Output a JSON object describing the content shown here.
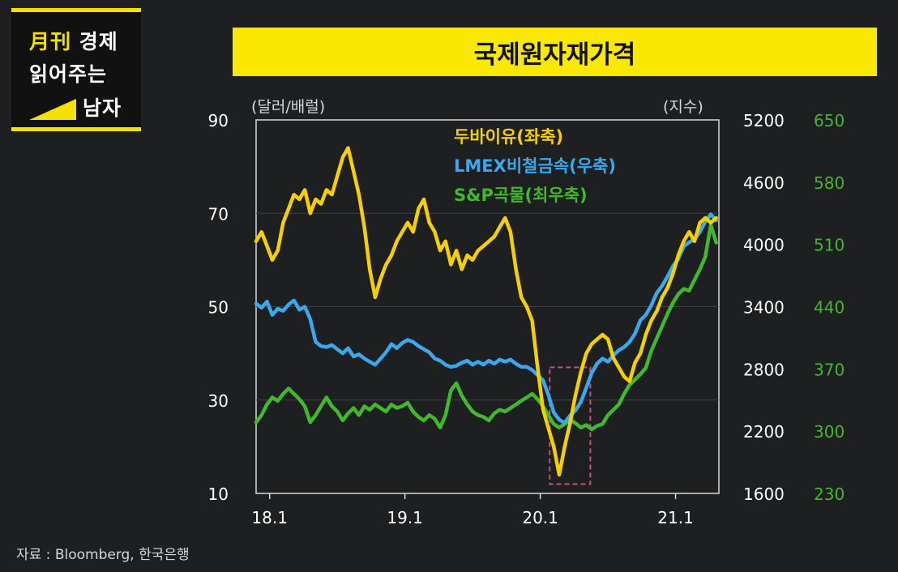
{
  "logo": {
    "line1_accent": "月刊",
    "line1": "경제",
    "line2": "읽어주는",
    "line3": "남자"
  },
  "title": "국제원자재가격",
  "source": "자료 : Bloomberg, 한국은행",
  "chart_data": {
    "type": "line",
    "title": "국제원자재가격",
    "left_axis": {
      "label": "(달러/배럴)",
      "ticks": [
        "90",
        "70",
        "50",
        "30",
        "10"
      ],
      "range": [
        10,
        90
      ]
    },
    "right_axis": {
      "label": "(지수)",
      "ticks": [
        "5200",
        "4600",
        "4000",
        "3400",
        "2800",
        "2200",
        "1600"
      ],
      "range": [
        1600,
        5200
      ]
    },
    "right_axis_2": {
      "ticks": [
        "650",
        "580",
        "510",
        "440",
        "370",
        "300",
        "230"
      ],
      "range": [
        230,
        650
      ]
    },
    "x_ticks": [
      "18.1",
      "19.1",
      "20.1",
      "21.1"
    ],
    "x_range": [
      2018.0,
      2021.42
    ],
    "colors": {
      "dubai": "#f5d000",
      "lmex": "#3aa8ec",
      "sp": "#42b82c",
      "highlight": "#c0557a"
    },
    "highlight_box": {
      "x": [
        2020.17,
        2020.47
      ],
      "y_left": [
        12,
        37
      ]
    },
    "series": [
      {
        "name": "두바이유(좌축)",
        "axis": "left",
        "color": "#f5d000",
        "x": [
          2018.0,
          2018.04,
          2018.08,
          2018.12,
          2018.16,
          2018.2,
          2018.24,
          2018.28,
          2018.32,
          2018.36,
          2018.4,
          2018.44,
          2018.48,
          2018.52,
          2018.56,
          2018.6,
          2018.64,
          2018.68,
          2018.72,
          2018.76,
          2018.8,
          2018.84,
          2018.88,
          2018.92,
          2018.96,
          2019.0,
          2019.04,
          2019.08,
          2019.12,
          2019.16,
          2019.2,
          2019.24,
          2019.28,
          2019.32,
          2019.36,
          2019.4,
          2019.44,
          2019.48,
          2019.52,
          2019.56,
          2019.6,
          2019.64,
          2019.68,
          2019.72,
          2019.76,
          2019.8,
          2019.84,
          2019.88,
          2019.92,
          2019.96,
          2020.0,
          2020.04,
          2020.08,
          2020.12,
          2020.16,
          2020.2,
          2020.24,
          2020.28,
          2020.32,
          2020.36,
          2020.4,
          2020.44,
          2020.48,
          2020.52,
          2020.56,
          2020.6,
          2020.64,
          2020.68,
          2020.72,
          2020.76,
          2020.8,
          2020.84,
          2020.88,
          2020.92,
          2020.96,
          2021.0,
          2021.04,
          2021.08,
          2021.12,
          2021.16,
          2021.2,
          2021.24,
          2021.28,
          2021.32,
          2021.36,
          2021.4
        ],
        "y": [
          64,
          66,
          63,
          60,
          62,
          68,
          71,
          74,
          73,
          75,
          70,
          73,
          72,
          75,
          74,
          78,
          82,
          84,
          79,
          74,
          67,
          58,
          52,
          56,
          59,
          61,
          64,
          66,
          68,
          66,
          71,
          73,
          68,
          66,
          62,
          64,
          59,
          62,
          58,
          61,
          60,
          62,
          63,
          64,
          65,
          67,
          69,
          66,
          58,
          52,
          50,
          47,
          37,
          28,
          24,
          20,
          14,
          20,
          25,
          31,
          36,
          40,
          42,
          43,
          44,
          43,
          39,
          37,
          35,
          34,
          38,
          40,
          44,
          47,
          49,
          52,
          54,
          57,
          61,
          64,
          66,
          64,
          68,
          69,
          68,
          69
        ]
      },
      {
        "name": "LMEX비철금속(우축)",
        "axis": "right",
        "color": "#3aa8ec",
        "x": [
          2018.0,
          2018.04,
          2018.08,
          2018.12,
          2018.16,
          2018.2,
          2018.24,
          2018.28,
          2018.32,
          2018.36,
          2018.4,
          2018.44,
          2018.48,
          2018.52,
          2018.56,
          2018.6,
          2018.64,
          2018.68,
          2018.72,
          2018.76,
          2018.8,
          2018.84,
          2018.88,
          2018.92,
          2018.96,
          2019.0,
          2019.04,
          2019.08,
          2019.12,
          2019.16,
          2019.2,
          2019.24,
          2019.28,
          2019.32,
          2019.36,
          2019.4,
          2019.44,
          2019.48,
          2019.52,
          2019.56,
          2019.6,
          2019.64,
          2019.68,
          2019.72,
          2019.76,
          2019.8,
          2019.84,
          2019.88,
          2019.92,
          2019.96,
          2020.0,
          2020.04,
          2020.08,
          2020.12,
          2020.16,
          2020.2,
          2020.24,
          2020.28,
          2020.32,
          2020.36,
          2020.4,
          2020.44,
          2020.48,
          2020.52,
          2020.56,
          2020.6,
          2020.64,
          2020.68,
          2020.72,
          2020.76,
          2020.8,
          2020.84,
          2020.88,
          2020.92,
          2020.96,
          2021.0,
          2021.04,
          2021.08,
          2021.12,
          2021.16,
          2021.2,
          2021.24,
          2021.28,
          2021.32,
          2021.36,
          2021.4
        ],
        "y": [
          3430,
          3390,
          3450,
          3320,
          3380,
          3360,
          3420,
          3460,
          3370,
          3400,
          3280,
          3060,
          3020,
          3010,
          3030,
          2990,
          2950,
          3000,
          2920,
          2940,
          2900,
          2870,
          2840,
          2900,
          2960,
          3040,
          3000,
          3050,
          3080,
          3060,
          3020,
          2990,
          2960,
          2900,
          2880,
          2840,
          2820,
          2830,
          2860,
          2880,
          2840,
          2870,
          2840,
          2880,
          2850,
          2890,
          2870,
          2890,
          2850,
          2820,
          2820,
          2790,
          2740,
          2690,
          2550,
          2380,
          2310,
          2280,
          2350,
          2400,
          2480,
          2620,
          2760,
          2850,
          2900,
          2870,
          2930,
          2980,
          3010,
          3060,
          3140,
          3270,
          3320,
          3410,
          3530,
          3600,
          3690,
          3790,
          3860,
          3980,
          4020,
          4050,
          4120,
          4220,
          4290,
          4230
        ]
      },
      {
        "name": "S&P곡물(최우축)",
        "axis": "right2",
        "color": "#42b82c",
        "x": [
          2018.0,
          2018.04,
          2018.08,
          2018.12,
          2018.16,
          2018.2,
          2018.24,
          2018.28,
          2018.32,
          2018.36,
          2018.4,
          2018.44,
          2018.48,
          2018.52,
          2018.56,
          2018.6,
          2018.64,
          2018.68,
          2018.72,
          2018.76,
          2018.8,
          2018.84,
          2018.88,
          2018.92,
          2018.96,
          2019.0,
          2019.04,
          2019.08,
          2019.12,
          2019.16,
          2019.2,
          2019.24,
          2019.28,
          2019.32,
          2019.36,
          2019.4,
          2019.44,
          2019.48,
          2019.52,
          2019.56,
          2019.6,
          2019.64,
          2019.68,
          2019.72,
          2019.76,
          2019.8,
          2019.84,
          2019.88,
          2019.92,
          2019.96,
          2020.0,
          2020.04,
          2020.08,
          2020.12,
          2020.16,
          2020.2,
          2020.24,
          2020.28,
          2020.32,
          2020.36,
          2020.4,
          2020.44,
          2020.48,
          2020.52,
          2020.56,
          2020.6,
          2020.64,
          2020.68,
          2020.72,
          2020.76,
          2020.8,
          2020.84,
          2020.88,
          2020.92,
          2020.96,
          2021.0,
          2021.04,
          2021.08,
          2021.12,
          2021.16,
          2021.2,
          2021.24,
          2021.28,
          2021.32,
          2021.36,
          2021.4
        ],
        "y": [
          310,
          318,
          330,
          338,
          334,
          342,
          348,
          342,
          336,
          328,
          310,
          318,
          328,
          338,
          328,
          322,
          312,
          320,
          326,
          318,
          328,
          324,
          330,
          326,
          322,
          330,
          326,
          328,
          332,
          322,
          316,
          312,
          318,
          314,
          304,
          318,
          346,
          354,
          340,
          330,
          322,
          318,
          316,
          312,
          320,
          324,
          322,
          326,
          330,
          334,
          338,
          342,
          336,
          328,
          318,
          308,
          304,
          308,
          313,
          309,
          304,
          307,
          302,
          306,
          308,
          318,
          324,
          330,
          342,
          352,
          358,
          364,
          371,
          390,
          404,
          418,
          432,
          444,
          454,
          460,
          458,
          470,
          482,
          496,
          532,
          512
        ]
      }
    ]
  }
}
